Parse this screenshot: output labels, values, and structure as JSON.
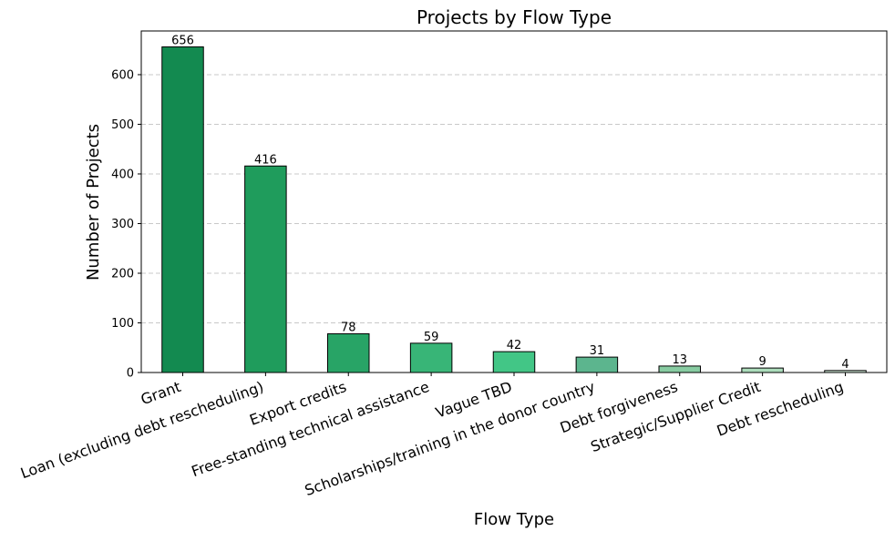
{
  "chart_data": {
    "type": "bar",
    "title": "Projects by Flow Type",
    "xlabel": "Flow Type",
    "ylabel": "Number of Projects",
    "categories": [
      "Grant",
      "Loan (excluding debt rescheduling)",
      "Export credits",
      "Free-standing technical assistance",
      "Vague TBD",
      "Scholarships/training in the donor country",
      "Debt forgiveness",
      "Strategic/Supplier Credit",
      "Debt rescheduling"
    ],
    "values": [
      656,
      416,
      78,
      59,
      42,
      31,
      13,
      9,
      4
    ],
    "bar_colors": [
      "#138a50",
      "#1f9c5c",
      "#28a466",
      "#38b577",
      "#42c686",
      "#5cb58e",
      "#88cca2",
      "#acdcbb",
      "#d2ecd8"
    ],
    "edge_color": "#000000",
    "ylim": [
      0,
      688
    ],
    "yticks": [
      0,
      100,
      200,
      300,
      400,
      500,
      600
    ],
    "grid": "horizontal dashed",
    "data_labels": true
  }
}
